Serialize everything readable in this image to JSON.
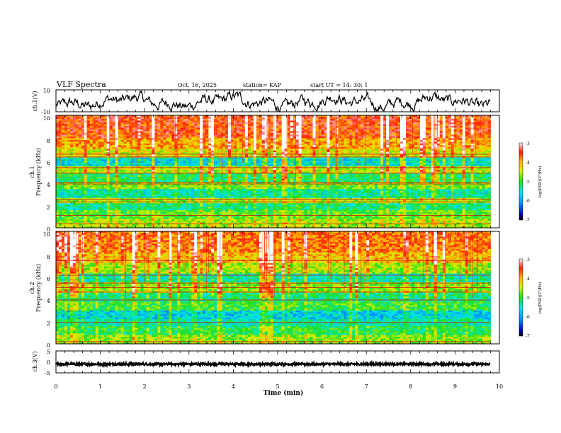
{
  "header": {
    "title": "VLF Spectra",
    "date": "Oct. 16, 2025",
    "station": "station= KAP",
    "start_ut": "start  UT =   14: 30: 1"
  },
  "chart_data": [
    {
      "panel": "ch1_waveform",
      "type": "line",
      "ylabel": "ch.1(V)",
      "ylim": [
        -10,
        10
      ],
      "ytick_labels": [
        "10",
        "-10"
      ],
      "xlim": [
        0,
        10
      ],
      "data_end_min": 9.8,
      "series": [
        {
          "name": "ch.1",
          "description": "noisy waveform oscillating mostly between about -8 V and +6 V"
        }
      ]
    },
    {
      "panel": "ch1_spectrogram",
      "type": "heatmap",
      "ylabel_channel": "ch.1",
      "ylabel": "Frequency (kHz)",
      "ylim": [
        0,
        10
      ],
      "ytick_labels": [
        "0",
        "2",
        "4",
        "6",
        "8",
        "10"
      ],
      "xlim": [
        0,
        9.8
      ],
      "colorbar": {
        "label": "log(PSD)(V²/Hz)",
        "range": [
          -7,
          -3
        ],
        "tick_labels": [
          "-3",
          "-4",
          "-5",
          "-6",
          "-7"
        ]
      },
      "bands_khz": [
        {
          "from": 0,
          "to": 0.8,
          "level": -4.6
        },
        {
          "from": 0.8,
          "to": 1.6,
          "level": -4.9
        },
        {
          "from": 1.6,
          "to": 2.2,
          "level": -5.3
        },
        {
          "from": 2.2,
          "to": 2.6,
          "level": -4.6
        },
        {
          "from": 2.6,
          "to": 3.4,
          "level": -5.4
        },
        {
          "from": 3.4,
          "to": 4.0,
          "level": -4.8
        },
        {
          "from": 4.0,
          "to": 4.8,
          "level": -5.2
        },
        {
          "from": 4.8,
          "to": 5.5,
          "level": -4.5
        },
        {
          "from": 5.5,
          "to": 6.2,
          "level": -5.6
        },
        {
          "from": 6.2,
          "to": 7.0,
          "level": -4.4
        },
        {
          "from": 7.0,
          "to": 8.0,
          "level": -4.0
        },
        {
          "from": 8.0,
          "to": 10.0,
          "level": -3.6
        }
      ],
      "lines_khz": [
        0.35,
        1.1,
        2.3,
        2.55,
        3.9,
        4.05,
        4.85,
        5.35,
        6.3,
        6.55
      ]
    },
    {
      "panel": "ch2_spectrogram",
      "type": "heatmap",
      "ylabel_channel": "ch.2",
      "ylabel": "Frequency (kHz)",
      "ylim": [
        0,
        10
      ],
      "ytick_labels": [
        "0",
        "2",
        "4",
        "6",
        "8",
        "10"
      ],
      "xlim": [
        0,
        9.8
      ],
      "colorbar": {
        "label": "log(PSD)(V²/Hz)",
        "range": [
          -7,
          -3
        ],
        "tick_labels": [
          "-3",
          "-4",
          "-5",
          "-6",
          "-7"
        ]
      },
      "bands_khz": [
        {
          "from": 0,
          "to": 0.8,
          "level": -4.7
        },
        {
          "from": 0.8,
          "to": 1.6,
          "level": -5.1
        },
        {
          "from": 1.6,
          "to": 2.2,
          "level": -5.4
        },
        {
          "from": 2.2,
          "to": 3.0,
          "level": -5.7
        },
        {
          "from": 3.0,
          "to": 3.8,
          "level": -5.0
        },
        {
          "from": 3.8,
          "to": 4.5,
          "level": -5.3
        },
        {
          "from": 4.5,
          "to": 5.4,
          "level": -4.7
        },
        {
          "from": 5.4,
          "to": 6.2,
          "level": -5.4
        },
        {
          "from": 6.2,
          "to": 7.2,
          "level": -4.6
        },
        {
          "from": 7.2,
          "to": 8.2,
          "level": -4.1
        },
        {
          "from": 8.2,
          "to": 10.0,
          "level": -3.8
        }
      ],
      "lines_khz": [
        0.2,
        1.9,
        3.9,
        4.6,
        5.0,
        5.4,
        6.1,
        7.4
      ]
    },
    {
      "panel": "ch3_waveform",
      "type": "line",
      "ylabel": "ch.3(V)",
      "ylim": [
        -5,
        5
      ],
      "ytick_labels": [
        "5",
        "0",
        "-5"
      ],
      "xlim": [
        0,
        10
      ],
      "data_end_min": 9.8,
      "series": [
        {
          "name": "ch.3",
          "description": "dense band centered near -1 V, amplitude about ±0.5 V"
        }
      ]
    }
  ],
  "xaxis": {
    "label": "Time  (min)",
    "tick_labels": [
      "0",
      "1",
      "2",
      "3",
      "4",
      "5",
      "6",
      "7",
      "8",
      "9",
      "10"
    ],
    "range": [
      0,
      10
    ]
  }
}
